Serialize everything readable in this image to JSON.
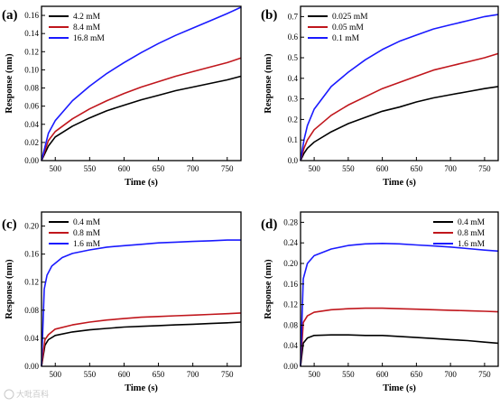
{
  "watermark": "大吡百科",
  "chart_data": [
    {
      "type": "line",
      "panel_label": "(a)",
      "xlabel": "Time (s)",
      "ylabel": "Response (nm)",
      "xlim": [
        480,
        770
      ],
      "ylim": [
        0,
        0.17
      ],
      "xticks": [
        500,
        550,
        600,
        650,
        700,
        750
      ],
      "yticks": [
        0.0,
        0.02,
        0.04,
        0.06,
        0.08,
        0.1,
        0.12,
        0.14,
        0.16
      ],
      "ytick_labels": [
        "0.00",
        "0.02",
        "0.04",
        "0.06",
        "0.08",
        "0.10",
        "0.12",
        "0.14",
        "0.16"
      ],
      "legend_position": "top-left",
      "series": [
        {
          "name": "4.2 mM",
          "color": "#000000",
          "x": [
            480,
            490,
            500,
            525,
            550,
            575,
            600,
            625,
            650,
            675,
            700,
            725,
            750,
            770
          ],
          "y": [
            0,
            0.016,
            0.026,
            0.038,
            0.047,
            0.055,
            0.061,
            0.067,
            0.072,
            0.077,
            0.081,
            0.085,
            0.089,
            0.093
          ]
        },
        {
          "name": "8.4 mM",
          "color": "#c0161c",
          "x": [
            480,
            490,
            500,
            525,
            550,
            575,
            600,
            625,
            650,
            675,
            700,
            725,
            750,
            770
          ],
          "y": [
            0,
            0.022,
            0.032,
            0.046,
            0.057,
            0.066,
            0.074,
            0.081,
            0.087,
            0.093,
            0.098,
            0.103,
            0.108,
            0.113
          ]
        },
        {
          "name": "16.8 mM",
          "color": "#1a1aff",
          "x": [
            480,
            490,
            500,
            525,
            550,
            575,
            600,
            625,
            650,
            675,
            700,
            725,
            750,
            770
          ],
          "y": [
            0,
            0.03,
            0.044,
            0.066,
            0.082,
            0.096,
            0.108,
            0.119,
            0.129,
            0.138,
            0.146,
            0.154,
            0.162,
            0.169
          ]
        }
      ]
    },
    {
      "type": "line",
      "panel_label": "(b)",
      "xlabel": "Time (s)",
      "ylabel": "Response (nm)",
      "xlim": [
        480,
        770
      ],
      "ylim": [
        0,
        0.75
      ],
      "xticks": [
        500,
        550,
        600,
        650,
        700,
        750
      ],
      "yticks": [
        0.0,
        0.1,
        0.2,
        0.3,
        0.4,
        0.5,
        0.6,
        0.7
      ],
      "ytick_labels": [
        "0.0",
        "0.1",
        "0.2",
        "0.3",
        "0.4",
        "0.5",
        "0.6",
        "0.7"
      ],
      "legend_position": "top-left",
      "series": [
        {
          "name": "0.025 mM",
          "color": "#000000",
          "x": [
            480,
            485,
            490,
            500,
            525,
            550,
            575,
            600,
            625,
            650,
            675,
            700,
            725,
            750,
            770
          ],
          "y": [
            0,
            0.035,
            0.06,
            0.09,
            0.14,
            0.18,
            0.21,
            0.24,
            0.26,
            0.285,
            0.305,
            0.32,
            0.335,
            0.35,
            0.36
          ]
        },
        {
          "name": "0.05 mM",
          "color": "#c0161c",
          "x": [
            480,
            485,
            490,
            500,
            525,
            550,
            575,
            600,
            625,
            650,
            675,
            700,
            725,
            750,
            770
          ],
          "y": [
            0,
            0.06,
            0.1,
            0.15,
            0.22,
            0.27,
            0.31,
            0.35,
            0.38,
            0.41,
            0.44,
            0.46,
            0.48,
            0.5,
            0.52
          ]
        },
        {
          "name": "0.1 mM",
          "color": "#1a1aff",
          "x": [
            480,
            485,
            490,
            500,
            525,
            550,
            575,
            600,
            625,
            650,
            675,
            700,
            725,
            750,
            770
          ],
          "y": [
            0,
            0.1,
            0.17,
            0.25,
            0.36,
            0.43,
            0.49,
            0.54,
            0.58,
            0.61,
            0.64,
            0.66,
            0.68,
            0.7,
            0.71
          ]
        }
      ]
    },
    {
      "type": "line",
      "panel_label": "(c)",
      "xlabel": "Time (s)",
      "ylabel": "Response (nm)",
      "xlim": [
        480,
        770
      ],
      "ylim": [
        0,
        0.22
      ],
      "xticks": [
        500,
        550,
        600,
        650,
        700,
        750
      ],
      "yticks": [
        0.0,
        0.04,
        0.08,
        0.12,
        0.16,
        0.2
      ],
      "ytick_labels": [
        "0.00",
        "0.04",
        "0.08",
        "0.12",
        "0.16",
        "0.20"
      ],
      "legend_position": "top-left",
      "series": [
        {
          "name": "0.4 mM",
          "color": "#000000",
          "x": [
            480,
            485,
            490,
            500,
            525,
            550,
            575,
            600,
            625,
            650,
            675,
            700,
            725,
            750,
            770
          ],
          "y": [
            0,
            0.03,
            0.038,
            0.044,
            0.049,
            0.052,
            0.054,
            0.056,
            0.057,
            0.058,
            0.059,
            0.06,
            0.061,
            0.062,
            0.063
          ]
        },
        {
          "name": "0.8 mM",
          "color": "#c0161c",
          "x": [
            480,
            485,
            490,
            500,
            525,
            550,
            575,
            600,
            625,
            650,
            675,
            700,
            725,
            750,
            770
          ],
          "y": [
            0,
            0.038,
            0.045,
            0.053,
            0.059,
            0.063,
            0.066,
            0.068,
            0.07,
            0.071,
            0.072,
            0.073,
            0.074,
            0.075,
            0.076
          ]
        },
        {
          "name": "1.6 mM",
          "color": "#1a1aff",
          "x": [
            480,
            484,
            488,
            495,
            510,
            525,
            550,
            575,
            600,
            625,
            650,
            675,
            700,
            725,
            750,
            770
          ],
          "y": [
            0,
            0.11,
            0.13,
            0.143,
            0.155,
            0.161,
            0.166,
            0.17,
            0.172,
            0.174,
            0.176,
            0.177,
            0.178,
            0.179,
            0.18,
            0.18
          ]
        }
      ]
    },
    {
      "type": "line",
      "panel_label": "(d)",
      "xlabel": "Time (s)",
      "ylabel": "Response (nm)",
      "xlim": [
        480,
        770
      ],
      "ylim": [
        0,
        0.3
      ],
      "xticks": [
        500,
        550,
        600,
        650,
        700,
        750
      ],
      "yticks": [
        0.0,
        0.04,
        0.08,
        0.12,
        0.16,
        0.2,
        0.24,
        0.28
      ],
      "ytick_labels": [
        "0.00",
        "0.04",
        "0.08",
        "0.12",
        "0.16",
        "0.20",
        "0.24",
        "0.28"
      ],
      "legend_position": "top-right",
      "series": [
        {
          "name": "0.4 mM",
          "color": "#000000",
          "x": [
            480,
            484,
            490,
            500,
            525,
            550,
            575,
            600,
            625,
            650,
            675,
            700,
            725,
            750,
            770
          ],
          "y": [
            0,
            0.045,
            0.055,
            0.06,
            0.061,
            0.061,
            0.06,
            0.06,
            0.058,
            0.056,
            0.054,
            0.052,
            0.05,
            0.047,
            0.045
          ]
        },
        {
          "name": "0.8 mM",
          "color": "#c0161c",
          "x": [
            480,
            484,
            490,
            500,
            525,
            550,
            575,
            600,
            625,
            650,
            675,
            700,
            725,
            750,
            770
          ],
          "y": [
            0,
            0.085,
            0.098,
            0.105,
            0.11,
            0.112,
            0.113,
            0.113,
            0.112,
            0.111,
            0.11,
            0.109,
            0.108,
            0.107,
            0.106
          ]
        },
        {
          "name": "1.6 mM",
          "color": "#1a1aff",
          "x": [
            480,
            484,
            490,
            500,
            525,
            550,
            575,
            600,
            625,
            650,
            675,
            700,
            725,
            750,
            770
          ],
          "y": [
            0,
            0.17,
            0.2,
            0.215,
            0.228,
            0.235,
            0.238,
            0.239,
            0.238,
            0.236,
            0.234,
            0.232,
            0.229,
            0.226,
            0.224
          ]
        }
      ]
    }
  ]
}
